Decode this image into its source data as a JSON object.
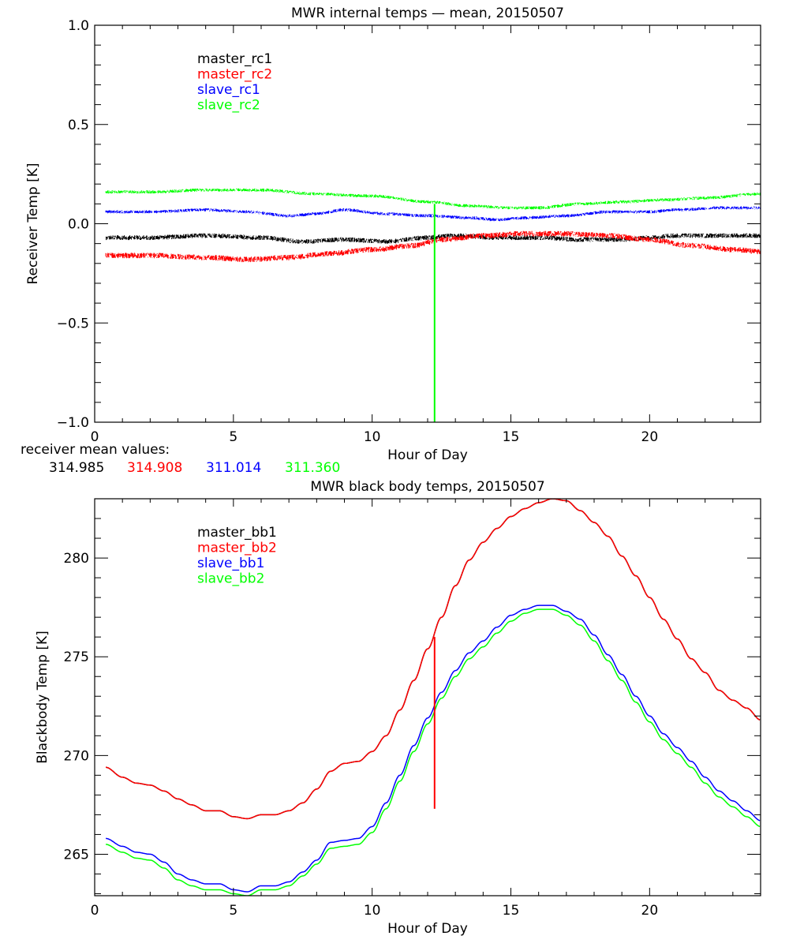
{
  "chart_data": [
    {
      "type": "line",
      "title": "MWR internal temps — mean, 20150507",
      "xlabel": "Hour of Day",
      "ylabel": "Receiver Temp [K]",
      "xlim": [
        0,
        24
      ],
      "ylim": [
        -1.0,
        1.0
      ],
      "xticks": [
        0,
        5,
        10,
        15,
        20
      ],
      "xtick_labels": [
        "0",
        "5",
        "10",
        "15",
        "20"
      ],
      "yticks": [
        -1.0,
        -0.5,
        0.0,
        0.5,
        1.0
      ],
      "ytick_labels": [
        "−1.0",
        "−0.5",
        "0.0",
        "0.5",
        "1.0"
      ],
      "grid": false,
      "legend_position": "top-left",
      "series": [
        {
          "name": "master_rc1",
          "color": "#000000",
          "noise": 0.012,
          "x": [
            0.4,
            2,
            4,
            6,
            7.5,
            9,
            10.5,
            12,
            13,
            14.5,
            16,
            17.5,
            19,
            20,
            21,
            22.5,
            24
          ],
          "y": [
            -0.07,
            -0.07,
            -0.06,
            -0.07,
            -0.09,
            -0.08,
            -0.09,
            -0.07,
            -0.06,
            -0.07,
            -0.07,
            -0.08,
            -0.08,
            -0.07,
            -0.06,
            -0.06,
            -0.06
          ]
        },
        {
          "name": "master_rc2",
          "color": "#ff0000",
          "noise": 0.014,
          "x": [
            0.4,
            2,
            4,
            5.5,
            7,
            8.5,
            10,
            11.5,
            12.5,
            14,
            15.5,
            17,
            18.5,
            20,
            21.5,
            23,
            24
          ],
          "y": [
            -0.16,
            -0.16,
            -0.17,
            -0.18,
            -0.17,
            -0.15,
            -0.13,
            -0.11,
            -0.08,
            -0.06,
            -0.05,
            -0.05,
            -0.06,
            -0.08,
            -0.11,
            -0.13,
            -0.14
          ]
        },
        {
          "name": "slave_rc1",
          "color": "#0000ff",
          "noise": 0.008,
          "x": [
            0.4,
            2,
            4,
            5.5,
            7,
            8,
            9,
            10.5,
            12,
            13.5,
            14.5,
            15.5,
            17,
            18.5,
            20,
            21,
            22.5,
            24
          ],
          "y": [
            0.06,
            0.06,
            0.07,
            0.06,
            0.04,
            0.05,
            0.07,
            0.05,
            0.04,
            0.03,
            0.02,
            0.03,
            0.04,
            0.06,
            0.06,
            0.07,
            0.08,
            0.08
          ]
        },
        {
          "name": "slave_rc2",
          "color": "#00ff00",
          "noise": 0.008,
          "x": [
            0.4,
            2,
            4,
            6,
            8,
            10,
            12,
            13.5,
            15,
            16,
            17.5,
            19,
            20.5,
            22,
            24
          ],
          "y": [
            0.16,
            0.16,
            0.17,
            0.17,
            0.15,
            0.14,
            0.11,
            0.09,
            0.08,
            0.08,
            0.1,
            0.11,
            0.12,
            0.13,
            0.15
          ]
        }
      ],
      "annotations": [
        {
          "type": "vertical-spike",
          "series": "slave_rc2",
          "x": 12.25,
          "y_from": 0.1,
          "y_to": -1.0
        }
      ]
    },
    {
      "type": "line",
      "title": "MWR black body temps, 20150507",
      "xlabel": "Hour of Day",
      "ylabel": "Blackbody Temp [K]",
      "xlim": [
        0,
        24
      ],
      "ylim": [
        262.9,
        283.0
      ],
      "xticks": [
        0,
        5,
        10,
        15,
        20
      ],
      "xtick_labels": [
        "0",
        "5",
        "10",
        "15",
        "20"
      ],
      "yticks": [
        265,
        270,
        275,
        280
      ],
      "ytick_labels": [
        "265",
        "270",
        "275",
        "280"
      ],
      "grid": false,
      "legend_position": "top-left",
      "series": [
        {
          "name": "master_bb1",
          "color": "#000000",
          "x": [
            0.4,
            1,
            1.5,
            2,
            2.5,
            3,
            3.5,
            4,
            4.5,
            5,
            5.5,
            6,
            6.5,
            7,
            7.5,
            8,
            8.5,
            9,
            9.5,
            10,
            10.5,
            11,
            11.5,
            12,
            12.5,
            13,
            13.5,
            14,
            14.5,
            15,
            15.5,
            16,
            16.5,
            17,
            17.5,
            18,
            18.5,
            19,
            19.5,
            20,
            20.5,
            21,
            21.5,
            22,
            22.5,
            23,
            23.5,
            24
          ],
          "y": [
            269.4,
            268.9,
            268.6,
            268.5,
            268.2,
            267.8,
            267.5,
            267.2,
            267.2,
            266.9,
            266.8,
            267.0,
            267.0,
            267.2,
            267.6,
            268.3,
            269.2,
            269.6,
            269.7,
            270.2,
            271.0,
            272.3,
            273.8,
            275.4,
            277.0,
            278.6,
            279.9,
            280.8,
            281.5,
            282.1,
            282.5,
            282.8,
            283.0,
            282.9,
            282.4,
            281.8,
            281.1,
            280.1,
            279.1,
            278.0,
            276.9,
            275.9,
            274.9,
            274.2,
            273.3,
            272.8,
            272.4,
            271.8
          ]
        },
        {
          "name": "master_bb2",
          "color": "#ff0000",
          "x": [
            0.4,
            1,
            1.5,
            2,
            2.5,
            3,
            3.5,
            4,
            4.5,
            5,
            5.5,
            6,
            6.5,
            7,
            7.5,
            8,
            8.5,
            9,
            9.5,
            10,
            10.5,
            11,
            11.5,
            12,
            12.5,
            13,
            13.5,
            14,
            14.5,
            15,
            15.5,
            16,
            16.5,
            17,
            17.5,
            18,
            18.5,
            19,
            19.5,
            20,
            20.5,
            21,
            21.5,
            22,
            22.5,
            23,
            23.5,
            24
          ],
          "y": [
            269.4,
            268.9,
            268.6,
            268.5,
            268.2,
            267.8,
            267.5,
            267.2,
            267.2,
            266.9,
            266.8,
            267.0,
            267.0,
            267.2,
            267.6,
            268.3,
            269.2,
            269.6,
            269.7,
            270.2,
            271.0,
            272.3,
            273.8,
            275.4,
            277.0,
            278.6,
            279.9,
            280.8,
            281.5,
            282.1,
            282.5,
            282.8,
            283.0,
            282.9,
            282.4,
            281.8,
            281.1,
            280.1,
            279.1,
            278.0,
            276.9,
            275.9,
            274.9,
            274.2,
            273.3,
            272.8,
            272.4,
            271.8
          ]
        },
        {
          "name": "slave_bb1",
          "color": "#0000ff",
          "x": [
            0.4,
            1,
            1.5,
            2,
            2.5,
            3,
            3.5,
            4,
            4.5,
            5,
            5.5,
            6,
            6.5,
            7,
            7.5,
            8,
            8.5,
            9,
            9.5,
            10,
            10.5,
            11,
            11.5,
            12,
            12.5,
            13,
            13.5,
            14,
            14.5,
            15,
            15.5,
            16,
            16.5,
            17,
            17.5,
            18,
            18.5,
            19,
            19.5,
            20,
            20.5,
            21,
            21.5,
            22,
            22.5,
            23,
            23.5,
            24
          ],
          "y": [
            265.8,
            265.4,
            265.1,
            265.0,
            264.6,
            264.0,
            263.7,
            263.5,
            263.5,
            263.2,
            263.1,
            263.4,
            263.4,
            263.6,
            264.1,
            264.7,
            265.6,
            265.7,
            265.8,
            266.4,
            267.6,
            269.0,
            270.5,
            271.9,
            273.2,
            274.3,
            275.2,
            275.8,
            276.5,
            277.1,
            277.4,
            277.6,
            277.6,
            277.3,
            276.9,
            276.1,
            275.1,
            274.1,
            273.0,
            272.0,
            271.1,
            270.4,
            269.7,
            268.9,
            268.2,
            267.7,
            267.2,
            266.7
          ]
        },
        {
          "name": "slave_bb2",
          "color": "#00ff00",
          "x": [
            0.4,
            1,
            1.5,
            2,
            2.5,
            3,
            3.5,
            4,
            4.5,
            5,
            5.5,
            6,
            6.5,
            7,
            7.5,
            8,
            8.5,
            9,
            9.5,
            10,
            10.5,
            11,
            11.5,
            12,
            12.5,
            13,
            13.5,
            14,
            14.5,
            15,
            15.5,
            16,
            16.5,
            17,
            17.5,
            18,
            18.5,
            19,
            19.5,
            20,
            20.5,
            21,
            21.5,
            22,
            22.5,
            23,
            23.5,
            24
          ],
          "y": [
            265.5,
            265.1,
            264.8,
            264.7,
            264.3,
            263.7,
            263.4,
            263.2,
            263.2,
            263.0,
            262.9,
            263.2,
            263.2,
            263.4,
            263.9,
            264.5,
            265.3,
            265.4,
            265.5,
            266.1,
            267.3,
            268.7,
            270.2,
            271.6,
            272.9,
            274.0,
            274.9,
            275.5,
            276.2,
            276.8,
            277.2,
            277.4,
            277.4,
            277.1,
            276.6,
            275.8,
            274.8,
            273.8,
            272.7,
            271.7,
            270.8,
            270.1,
            269.4,
            268.6,
            267.9,
            267.4,
            266.9,
            266.4
          ]
        }
      ],
      "annotations": [
        {
          "type": "vertical-spike",
          "series": "master_bb2",
          "x": 12.25,
          "y_from": 276.0,
          "y_to": 267.3
        }
      ]
    }
  ],
  "receiver_means": {
    "label": "receiver mean values:",
    "values": [
      {
        "text": "314.985",
        "color": "#000000"
      },
      {
        "text": "314.908",
        "color": "#ff0000"
      },
      {
        "text": "311.014",
        "color": "#0000ff"
      },
      {
        "text": "311.360",
        "color": "#00ff00"
      }
    ]
  }
}
